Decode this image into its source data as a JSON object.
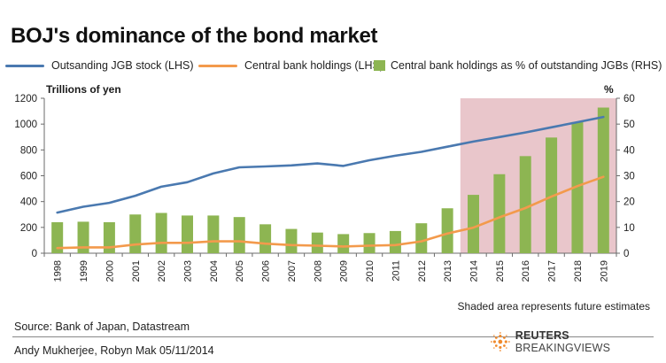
{
  "title": "BOJ's dominance of the bond market",
  "legend": {
    "stock": "Outsanding JGB stock (LHS)",
    "holdings": "Central bank holdings (LHS)",
    "pct": "Central bank holdings as % of outstanding JGBs (RHS)"
  },
  "colors": {
    "stock": "#4a79b0",
    "holdings": "#f39a4c",
    "pct": "#8db552",
    "shade": "#e9c6cb"
  },
  "axis": {
    "left_label": "Trillions of yen",
    "right_label": "%"
  },
  "note": "Shaded area represents future estimates",
  "source": "Source: Bank of Japan, Datastream",
  "credit": "Andy Mukherjee, Robyn Mak  05/11/2014",
  "logo": {
    "icon": "reuters-dot-logo-icon",
    "brand": "REUTERS",
    "product": "BREAKINGVIEWS"
  },
  "chart_data": {
    "type": "bar",
    "categories": [
      "1998",
      "1999",
      "2000",
      "2001",
      "2002",
      "2003",
      "2004",
      "2005",
      "2006",
      "2007",
      "2008",
      "2009",
      "2010",
      "2011",
      "2012",
      "2013",
      "2014",
      "2015",
      "2016",
      "2017",
      "2018",
      "2019"
    ],
    "shaded_from": "2014",
    "shaded_to": "2019",
    "left_axis": {
      "min": 0,
      "max": 1200,
      "ticks": [
        0,
        200,
        400,
        600,
        800,
        1000,
        1200
      ]
    },
    "right_axis": {
      "min": 0,
      "max": 60,
      "ticks": [
        0,
        10,
        20,
        30,
        40,
        50,
        60
      ]
    },
    "series": [
      {
        "name": "Central bank holdings as % of outstanding JGBs (RHS)",
        "type": "bar",
        "axis": "right",
        "values": [
          12,
          12.2,
          12,
          15,
          15.6,
          14.6,
          14.6,
          14,
          11.2,
          9.4,
          8,
          7.4,
          7.8,
          8.6,
          11.6,
          17.4,
          22.6,
          30.6,
          37.6,
          44.8,
          50.8,
          56.4
        ]
      },
      {
        "name": "Outsanding JGB stock (LHS)",
        "type": "line",
        "axis": "left",
        "values": [
          315,
          360,
          390,
          445,
          515,
          550,
          618,
          665,
          672,
          680,
          695,
          676,
          720,
          755,
          785,
          825,
          865,
          900,
          935,
          975,
          1015,
          1055
        ]
      },
      {
        "name": "Central bank holdings (LHS)",
        "type": "line",
        "axis": "left",
        "values": [
          40,
          45,
          45,
          67,
          80,
          80,
          92,
          92,
          74,
          63,
          58,
          52,
          58,
          63,
          92,
          152,
          198,
          278,
          350,
          438,
          520,
          592
        ]
      }
    ]
  }
}
